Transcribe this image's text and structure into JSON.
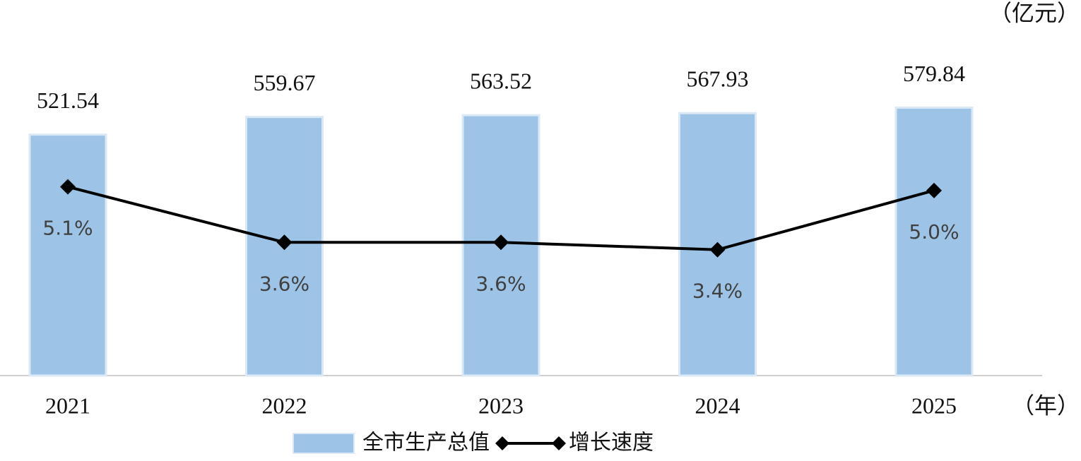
{
  "chart_data": {
    "type": "combo",
    "y_unit_label": "（亿元）",
    "x_unit_label": "（年）",
    "categories": [
      "2021",
      "2022",
      "2023",
      "2024",
      "2025"
    ],
    "series": [
      {
        "name": "全市生产总值",
        "type": "bar",
        "color": "#9dc3e6",
        "values": [
          521.54,
          559.67,
          563.52,
          567.93,
          579.84
        ]
      },
      {
        "name": "增长速度",
        "type": "line",
        "axis": "y2",
        "color": "#000000",
        "values": [
          5.1,
          3.6,
          3.6,
          3.4,
          5.0
        ],
        "value_labels": [
          "5.1%",
          "3.6%",
          "3.6%",
          "3.4%",
          "5.0%"
        ]
      }
    ],
    "ylim": [
      0,
      660
    ],
    "y2lim": [
      0,
      8.24
    ],
    "grid": false
  }
}
